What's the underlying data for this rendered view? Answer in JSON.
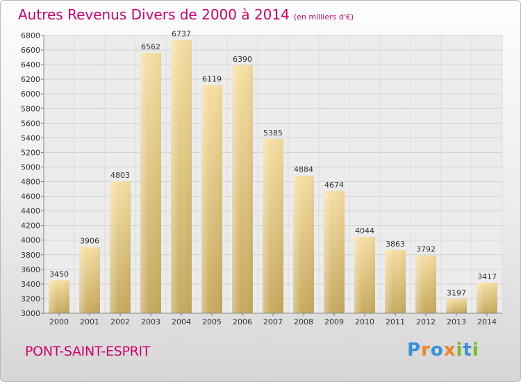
{
  "title": "Autres Revenus Divers de 2000 à 2014",
  "unit_note": "(en milliers d'€)",
  "city": "PONT-SAINT-ESPRIT",
  "logo": {
    "letters": [
      "P",
      "r",
      "o",
      "x",
      "i",
      "t",
      "i"
    ],
    "colors": [
      "#3a8fd6",
      "#e8882b",
      "#3a8fd6",
      "#e8882b",
      "#7ab829",
      "#3a8fd6",
      "#7ab829"
    ]
  },
  "colors": {
    "title": "#d1006a",
    "bar_light": "#f5dc9c",
    "bar_dark": "#c9ad63"
  },
  "chart_data": {
    "type": "bar",
    "categories": [
      "2000",
      "2001",
      "2002",
      "2003",
      "2004",
      "2005",
      "2006",
      "2007",
      "2008",
      "2009",
      "2010",
      "2011",
      "2012",
      "2013",
      "2014"
    ],
    "values": [
      3450,
      3906,
      4803,
      6562,
      6737,
      6119,
      6390,
      5385,
      4884,
      4674,
      4044,
      3863,
      3792,
      3197,
      3417
    ],
    "title": "Autres Revenus Divers de 2000 à 2014",
    "xlabel": "",
    "ylabel": "",
    "ylim": [
      3000,
      6800
    ],
    "yticks": [
      3000,
      3200,
      3400,
      3600,
      3800,
      4000,
      4200,
      4400,
      4600,
      4800,
      5000,
      5200,
      5400,
      5600,
      5800,
      6000,
      6200,
      6400,
      6600,
      6800
    ],
    "grid": true
  }
}
